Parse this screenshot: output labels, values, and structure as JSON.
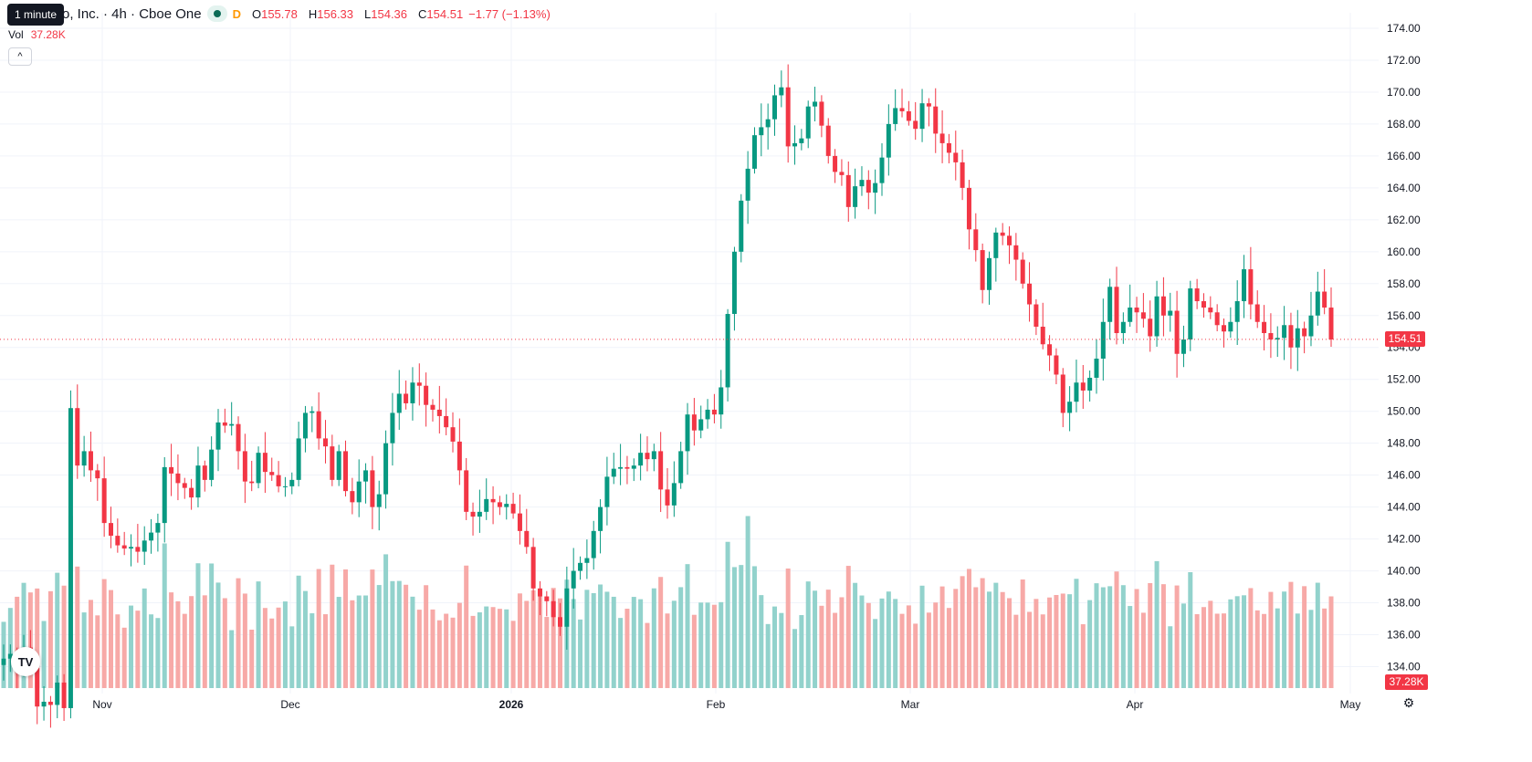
{
  "header": {
    "tooltip": "1 minute",
    "symbol": "o, Inc. · 4h · Cboe One",
    "market_status": "D",
    "o_label": "O",
    "o_value": "155.78",
    "h_label": "H",
    "h_value": "156.33",
    "l_label": "L",
    "l_value": "154.36",
    "c_label": "C",
    "c_value": "154.51",
    "change": "−1.77 (−1.13%)"
  },
  "volume_legend": {
    "label": "Vol",
    "value": "37.28K"
  },
  "price_axis": {
    "labels": [
      "174.00",
      "172.00",
      "170.00",
      "168.00",
      "166.00",
      "164.00",
      "162.00",
      "160.00",
      "158.00",
      "156.00",
      "154.00",
      "152.00",
      "150.00",
      "148.00",
      "146.00",
      "144.00",
      "142.00",
      "140.00",
      "138.00",
      "136.00",
      "134.00"
    ]
  },
  "time_axis": {
    "labels": [
      "Nov",
      "Dec",
      "2026",
      "Feb",
      "Mar",
      "Apr",
      "May"
    ]
  },
  "last_price_tag": "154.51",
  "last_volume_tag": "37.28K",
  "icons": {
    "logo": "tradingview-logo-icon",
    "collapse": "chevron-up-icon",
    "settings": "gear-icon"
  },
  "colors": {
    "up": "#089981",
    "down": "#f23645",
    "up_volume": "#92d2cc",
    "down_volume": "#f7a9a7",
    "grid": "#f0f3fa"
  },
  "chart_data": {
    "type": "candlestick",
    "title": "",
    "interval": "4h",
    "source": "Cboe One",
    "ylim": [
      133,
      174.5
    ],
    "xlabels": [
      "Nov",
      "Dec",
      "2026",
      "Feb",
      "Mar",
      "Apr",
      "May"
    ],
    "last_price": 154.51,
    "closes": [
      134.5,
      134.8,
      134.0,
      135.2,
      133.9,
      131.5,
      131.8,
      131.6,
      133.0,
      131.4,
      150.2,
      146.6,
      147.5,
      146.3,
      145.8,
      143.0,
      142.2,
      141.6,
      141.4,
      141.5,
      141.2,
      141.9,
      142.4,
      143.0,
      146.5,
      146.1,
      145.5,
      145.2,
      144.6,
      146.6,
      145.7,
      147.6,
      149.3,
      149.1,
      149.2,
      147.5,
      145.6,
      145.5,
      147.4,
      146.2,
      146.0,
      145.3,
      145.3,
      145.7,
      148.3,
      149.9,
      150.0,
      148.3,
      147.8,
      145.7,
      147.5,
      145.0,
      144.3,
      145.6,
      146.3,
      144.0,
      144.8,
      148.0,
      149.9,
      151.1,
      150.5,
      151.8,
      151.6,
      150.4,
      150.1,
      149.7,
      149.0,
      148.1,
      146.3,
      143.7,
      143.4,
      143.7,
      144.5,
      144.3,
      144.0,
      144.2,
      143.6,
      142.5,
      141.5,
      138.9,
      138.4,
      138.1,
      137.1,
      136.5,
      138.9,
      140.0,
      140.5,
      140.8,
      142.5,
      144.0,
      145.9,
      146.4,
      146.5,
      146.4,
      146.6,
      147.4,
      147.0,
      147.5,
      145.1,
      144.1,
      145.5,
      147.5,
      149.8,
      148.8,
      149.5,
      150.1,
      149.8,
      151.5,
      156.1,
      160.0,
      163.2,
      165.2,
      167.3,
      167.8,
      168.3,
      169.8,
      170.3,
      166.6,
      166.8,
      167.1,
      169.1,
      169.4,
      167.9,
      166.0,
      165.0,
      164.8,
      162.8,
      164.1,
      164.5,
      163.7,
      164.3,
      165.9,
      168.0,
      169.0,
      168.8,
      168.2,
      167.7,
      169.3,
      169.1,
      167.4,
      166.8,
      166.2,
      165.6,
      164.0,
      161.4,
      160.1,
      157.6,
      159.6,
      161.2,
      161.0,
      160.4,
      159.5,
      158.0,
      156.7,
      155.3,
      154.2,
      153.5,
      152.3,
      149.9,
      150.6,
      151.8,
      151.3,
      152.1,
      153.3,
      155.6,
      157.8,
      154.9,
      155.6,
      156.5,
      156.2,
      155.8,
      154.7,
      157.2,
      156.0,
      156.3,
      153.6,
      154.5,
      157.7,
      156.9,
      156.5,
      156.2,
      155.4,
      155.0,
      155.6,
      156.9,
      158.9,
      156.7,
      155.6,
      154.9,
      154.5,
      154.6,
      155.4,
      154.0,
      155.2,
      154.7,
      156.0,
      157.5,
      156.5,
      154.5
    ],
    "volume_max": 43.5,
    "volume_ylim": [
      0,
      60
    ]
  }
}
